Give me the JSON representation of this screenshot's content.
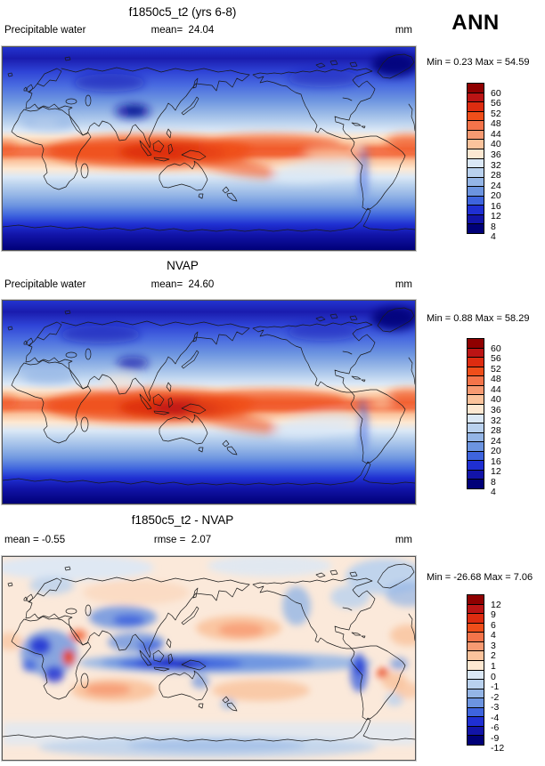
{
  "header": {
    "season_label": "ANN"
  },
  "palette": {
    "colors": [
      "#8f0000",
      "#bb1414",
      "#dd2c10",
      "#ef4e1a",
      "#f4744a",
      "#f79a72",
      "#fbc39c",
      "#fde8d2",
      "#dbe8f6",
      "#b9d1ee",
      "#94b5e6",
      "#6c94e0",
      "#3e64de",
      "#1f2fd2",
      "#1214a8",
      "#000078"
    ]
  },
  "panels": [
    {
      "title": "f1850c5_t2 (yrs 6-8)",
      "left_label": "Precipitable water",
      "left_value": "",
      "center_label": "mean=",
      "center_value": "24.04",
      "units": "mm",
      "min_label": "Min =",
      "min_value": "0.23",
      "max_label": "Max =",
      "max_value": "54.59",
      "colorbar_labels": [
        "60",
        "56",
        "52",
        "48",
        "44",
        "40",
        "36",
        "32",
        "28",
        "24",
        "20",
        "16",
        "12",
        "8",
        "4"
      ]
    },
    {
      "title": "NVAP",
      "left_label": "Precipitable water",
      "left_value": "",
      "center_label": "mean=",
      "center_value": "24.60",
      "units": "mm",
      "min_label": "Min =",
      "min_value": "0.88",
      "max_label": "Max =",
      "max_value": "58.29",
      "colorbar_labels": [
        "60",
        "56",
        "52",
        "48",
        "44",
        "40",
        "36",
        "32",
        "28",
        "24",
        "20",
        "16",
        "12",
        "8",
        "4"
      ]
    },
    {
      "title": "f1850c5_t2 - NVAP",
      "left_label": "mean =",
      "left_value": "-0.55",
      "center_label": "rmse =",
      "center_value": "2.07",
      "units": "mm",
      "min_label": "Min =",
      "min_value": "-26.68",
      "max_label": "Max =",
      "max_value": "7.06",
      "colorbar_labels": [
        "12",
        "9",
        "6",
        "4",
        "3",
        "2",
        "1",
        "0",
        "-1",
        "-2",
        "-3",
        "-4",
        "-6",
        "-9",
        "-12"
      ]
    }
  ],
  "chart_data": [
    {
      "type": "heatmap",
      "subtype": "filled-contour world map, equirectangular, Pacific-centered",
      "title": "f1850c5_t2 (yrs 6-8)",
      "variable": "Precipitable water",
      "units": "mm",
      "season": "ANN",
      "stats": {
        "mean": 24.04,
        "min": 0.23,
        "max": 54.59
      },
      "contour_levels": [
        4,
        8,
        12,
        16,
        20,
        24,
        28,
        32,
        36,
        40,
        44,
        48,
        52,
        56,
        60
      ],
      "legend_position": "right vertical colorbar",
      "palette": "16-step dark blue (low) to dark red (high)",
      "pattern": "Maxima 44-56 mm in deep red band along the tropics (Indian Ocean, Maritime Continent, west Pacific warm pool, Amazon); values decrease poleward through light blues to <4 mm (navy) over the Arctic, Tibet, Greenland and Antarctica."
    },
    {
      "type": "heatmap",
      "subtype": "filled-contour world map, equirectangular, Pacific-centered",
      "title": "NVAP",
      "variable": "Precipitable water",
      "units": "mm",
      "season": "ANN",
      "stats": {
        "mean": 24.6,
        "min": 0.88,
        "max": 58.29
      },
      "contour_levels": [
        4,
        8,
        12,
        16,
        20,
        24,
        28,
        32,
        36,
        40,
        44,
        48,
        52,
        56,
        60
      ],
      "legend_position": "right vertical colorbar",
      "palette": "16-step dark blue (low) to dark red (high)",
      "pattern": "Observed climatology; same tropical wet band with slightly darker red core (48-58 mm) over the Maritime Continent / west Pacific, navy poles."
    },
    {
      "type": "heatmap",
      "subtype": "filled-contour difference map, equirectangular, Pacific-centered",
      "title": "f1850c5_t2 - NVAP",
      "variable": "Precipitable water difference",
      "units": "mm",
      "season": "ANN",
      "stats": {
        "mean": -0.55,
        "rmse": 2.07,
        "min": -26.68,
        "max": 7.06
      },
      "contour_levels": [
        -12,
        -9,
        -6,
        -4,
        -3,
        -2,
        -1,
        0,
        1,
        2,
        3,
        4,
        6,
        9,
        12
      ],
      "legend_position": "right vertical colorbar",
      "palette": "16-step dark blue (negative) to dark red (positive)",
      "pattern": "Mostly pale peach (0 to +2 mm). Strong dry bias (blue, -4 to -12 mm) along the equatorial band over the Maritime Continent and ITCZ, over central Africa, Tibet/central Asia and west of the Andes; small wet spots (orange/red) over East Africa, the Andes, and broad +1 to +3 mm patches over the N Pacific, S Indian and S Pacific subtropical oceans; light blue over the Southern Ocean/Antarctica."
    }
  ]
}
